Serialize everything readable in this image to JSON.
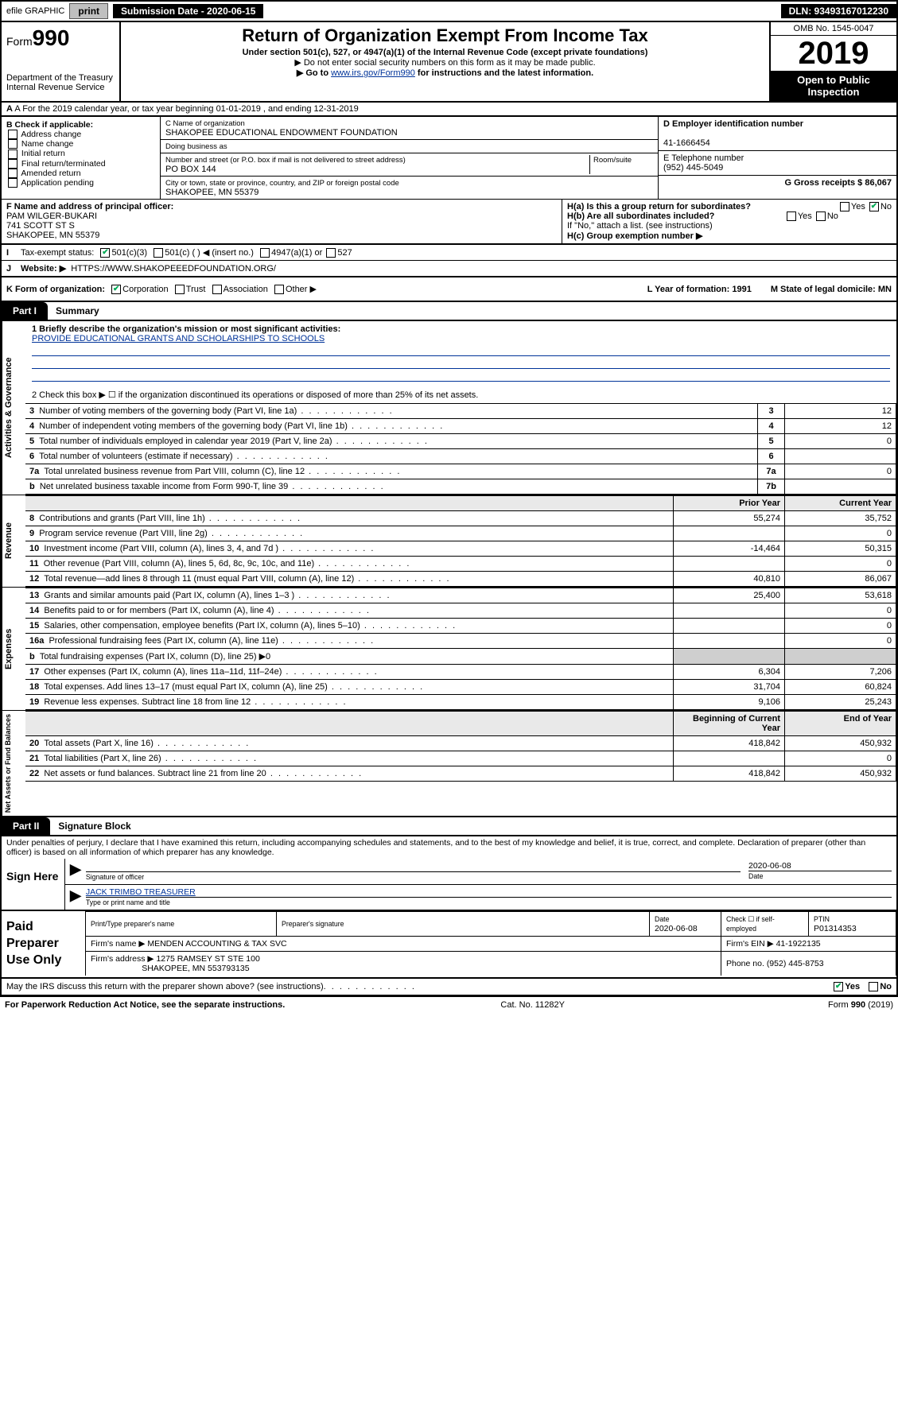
{
  "topbar": {
    "efile": "efile GRAPHIC",
    "print": "print",
    "submission_label": "Submission Date - 2020-06-15",
    "dln": "DLN: 93493167012230"
  },
  "header": {
    "form_prefix": "Form",
    "form_number": "990",
    "dept": "Department of the Treasury\nInternal Revenue Service",
    "title": "Return of Organization Exempt From Income Tax",
    "subtitle": "Under section 501(c), 527, or 4947(a)(1) of the Internal Revenue Code (except private foundations)",
    "note1": "▶ Do not enter social security numbers on this form as it may be made public.",
    "note2_pre": "▶ Go to ",
    "note2_link": "www.irs.gov/Form990",
    "note2_post": " for instructions and the latest information.",
    "omb": "OMB No. 1545-0047",
    "year": "2019",
    "open_public": "Open to Public Inspection"
  },
  "row_a": "A For the 2019 calendar year, or tax year beginning 01-01-2019   , and ending 12-31-2019",
  "col_b": {
    "label": "B Check if applicable:",
    "items": [
      "Address change",
      "Name change",
      "Initial return",
      "Final return/terminated",
      "Amended return",
      "Application pending"
    ]
  },
  "col_c": {
    "name_lbl": "C Name of organization",
    "name": "SHAKOPEE EDUCATIONAL ENDOWMENT FOUNDATION",
    "dba_lbl": "Doing business as",
    "addr_lbl": "Number and street (or P.O. box if mail is not delivered to street address)",
    "room_lbl": "Room/suite",
    "addr": "PO BOX 144",
    "city_lbl": "City or town, state or province, country, and ZIP or foreign postal code",
    "city": "SHAKOPEE, MN  55379"
  },
  "col_de": {
    "d_lbl": "D Employer identification number",
    "ein": "41-1666454",
    "e_lbl": "E Telephone number",
    "phone": "(952) 445-5049",
    "g_lbl": "G Gross receipts $ 86,067"
  },
  "row_f": {
    "lbl": "F Name and address of principal officer:",
    "name": "PAM WILGER-BUKARI",
    "addr1": "741 SCOTT ST S",
    "addr2": "SHAKOPEE, MN  55379"
  },
  "row_h": {
    "a": "H(a)  Is this a group return for subordinates?",
    "b": "H(b)  Are all subordinates included?",
    "b_note": "If \"No,\" attach a list. (see instructions)",
    "c": "H(c)  Group exemption number ▶"
  },
  "row_i": {
    "lbl": "Tax-exempt status:",
    "opts": [
      "501(c)(3)",
      "501(c) (  ) ◀ (insert no.)",
      "4947(a)(1) or",
      "527"
    ]
  },
  "row_j": {
    "lbl": "Website: ▶",
    "url": "HTTPS://WWW.SHAKOPEEEDFOUNDATION.ORG/"
  },
  "row_k": {
    "lbl": "K Form of organization:",
    "opts": [
      "Corporation",
      "Trust",
      "Association",
      "Other ▶"
    ],
    "l": "L Year of formation: 1991",
    "m": "M State of legal domicile: MN"
  },
  "part1": {
    "tab": "Part I",
    "title": "Summary"
  },
  "gov": {
    "label": "Activities & Governance",
    "line1_lbl": "1  Briefly describe the organization's mission or most significant activities:",
    "mission": "PROVIDE EDUCATIONAL GRANTS AND SCHOLARSHIPS TO SCHOOLS",
    "line2": "2   Check this box ▶ ☐  if the organization discontinued its operations or disposed of more than 25% of its net assets.",
    "rows": [
      {
        "n": "3",
        "t": "Number of voting members of the governing body (Part VI, line 1a)",
        "box": "3",
        "v": "12"
      },
      {
        "n": "4",
        "t": "Number of independent voting members of the governing body (Part VI, line 1b)",
        "box": "4",
        "v": "12"
      },
      {
        "n": "5",
        "t": "Total number of individuals employed in calendar year 2019 (Part V, line 2a)",
        "box": "5",
        "v": "0"
      },
      {
        "n": "6",
        "t": "Total number of volunteers (estimate if necessary)",
        "box": "6",
        "v": ""
      },
      {
        "n": "7a",
        "t": "Total unrelated business revenue from Part VIII, column (C), line 12",
        "box": "7a",
        "v": "0"
      },
      {
        "n": "b",
        "t": "Net unrelated business taxable income from Form 990-T, line 39",
        "box": "7b",
        "v": ""
      }
    ]
  },
  "rev": {
    "label": "Revenue",
    "hdr_prior": "Prior Year",
    "hdr_curr": "Current Year",
    "rows": [
      {
        "n": "8",
        "t": "Contributions and grants (Part VIII, line 1h)",
        "p": "55,274",
        "c": "35,752"
      },
      {
        "n": "9",
        "t": "Program service revenue (Part VIII, line 2g)",
        "p": "",
        "c": "0"
      },
      {
        "n": "10",
        "t": "Investment income (Part VIII, column (A), lines 3, 4, and 7d )",
        "p": "-14,464",
        "c": "50,315"
      },
      {
        "n": "11",
        "t": "Other revenue (Part VIII, column (A), lines 5, 6d, 8c, 9c, 10c, and 11e)",
        "p": "",
        "c": "0"
      },
      {
        "n": "12",
        "t": "Total revenue—add lines 8 through 11 (must equal Part VIII, column (A), line 12)",
        "p": "40,810",
        "c": "86,067"
      }
    ]
  },
  "exp": {
    "label": "Expenses",
    "rows": [
      {
        "n": "13",
        "t": "Grants and similar amounts paid (Part IX, column (A), lines 1–3 )",
        "p": "25,400",
        "c": "53,618"
      },
      {
        "n": "14",
        "t": "Benefits paid to or for members (Part IX, column (A), line 4)",
        "p": "",
        "c": "0"
      },
      {
        "n": "15",
        "t": "Salaries, other compensation, employee benefits (Part IX, column (A), lines 5–10)",
        "p": "",
        "c": "0"
      },
      {
        "n": "16a",
        "t": "Professional fundraising fees (Part IX, column (A), line 11e)",
        "p": "",
        "c": "0"
      },
      {
        "n": "b",
        "t": "Total fundraising expenses (Part IX, column (D), line 25) ▶0",
        "p": "—shade—",
        "c": "—shade—"
      },
      {
        "n": "17",
        "t": "Other expenses (Part IX, column (A), lines 11a–11d, 11f–24e)",
        "p": "6,304",
        "c": "7,206"
      },
      {
        "n": "18",
        "t": "Total expenses. Add lines 13–17 (must equal Part IX, column (A), line 25)",
        "p": "31,704",
        "c": "60,824"
      },
      {
        "n": "19",
        "t": "Revenue less expenses. Subtract line 18 from line 12",
        "p": "9,106",
        "c": "25,243"
      }
    ]
  },
  "net": {
    "label": "Net Assets or Fund Balances",
    "hdr_beg": "Beginning of Current Year",
    "hdr_end": "End of Year",
    "rows": [
      {
        "n": "20",
        "t": "Total assets (Part X, line 16)",
        "p": "418,842",
        "c": "450,932"
      },
      {
        "n": "21",
        "t": "Total liabilities (Part X, line 26)",
        "p": "",
        "c": "0"
      },
      {
        "n": "22",
        "t": "Net assets or fund balances. Subtract line 21 from line 20",
        "p": "418,842",
        "c": "450,932"
      }
    ]
  },
  "part2": {
    "tab": "Part II",
    "title": "Signature Block"
  },
  "perjury": "Under penalties of perjury, I declare that I have examined this return, including accompanying schedules and statements, and to the best of my knowledge and belief, it is true, correct, and complete. Declaration of preparer (other than officer) is based on all information of which preparer has any knowledge.",
  "sign": {
    "label": "Sign Here",
    "sig_lbl": "Signature of officer",
    "date": "2020-06-08",
    "date_lbl": "Date",
    "name": "JACK TRIMBO TREASURER",
    "name_lbl": "Type or print name and title"
  },
  "prep": {
    "label": "Paid Preparer Use Only",
    "h_name": "Print/Type preparer's name",
    "h_sig": "Preparer's signature",
    "h_date": "Date",
    "date": "2020-06-08",
    "h_check": "Check ☐ if self-employed",
    "h_ptin": "PTIN",
    "ptin": "P01314353",
    "firm_name_lbl": "Firm's name    ▶",
    "firm_name": "MENDEN ACCOUNTING & TAX SVC",
    "firm_ein_lbl": "Firm's EIN ▶",
    "firm_ein": "41-1922135",
    "firm_addr_lbl": "Firm's address ▶",
    "firm_addr1": "1275 RAMSEY ST STE 100",
    "firm_addr2": "SHAKOPEE, MN  553793135",
    "phone_lbl": "Phone no.",
    "phone": "(952) 445-8753"
  },
  "discuss": "May the IRS discuss this return with the preparer shown above? (see instructions)",
  "footer": {
    "left": "For Paperwork Reduction Act Notice, see the separate instructions.",
    "mid": "Cat. No. 11282Y",
    "right": "Form 990 (2019)"
  }
}
